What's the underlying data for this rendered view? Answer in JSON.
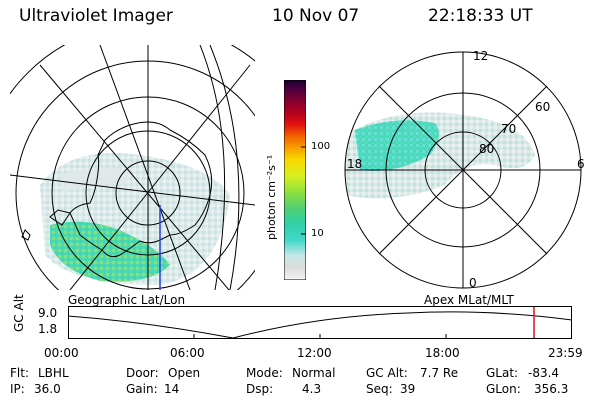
{
  "header": {
    "instrument": "Ultraviolet Imager",
    "date": "10 Nov 07",
    "time": "22:18:33 UT"
  },
  "left_map": {
    "caption": "Geographic Lat/Lon"
  },
  "right_map": {
    "caption": "Apex MLat/MLT",
    "lat_labels": [
      "80",
      "70",
      "60"
    ],
    "mlt_labels": {
      "top": "12",
      "left": "18",
      "right": "6",
      "bottom": "0"
    }
  },
  "colorbar": {
    "unit": "photon cm⁻²s⁻¹",
    "ticks": [
      "100",
      "10"
    ],
    "scale": "log",
    "colors": [
      "#f4f4f4",
      "#dcdcdc",
      "#c8e8e8",
      "#40d8c8",
      "#30d0a8",
      "#50d070",
      "#90e040",
      "#d8f020",
      "#f8d800",
      "#f8a000",
      "#f06000",
      "#e01010",
      "#b00020",
      "#800030",
      "#500040",
      "#1a0030"
    ]
  },
  "altitude_plot": {
    "ylabel": "GC Alt",
    "y_ticks": [
      "9.0",
      "1.8"
    ],
    "x_ticks": [
      "00:00",
      "06:00",
      "12:00",
      "18:00",
      "23:59"
    ],
    "marker_color": "#e01010"
  },
  "status": {
    "row1": [
      {
        "key": "Flt:",
        "value": "LBHL"
      },
      {
        "key": "Door:",
        "value": "Open"
      },
      {
        "key": "Mode:",
        "value": "Normal"
      },
      {
        "key": "GC Alt:",
        "value": "7.7 Re"
      },
      {
        "key": "GLat:",
        "value": "-83.4"
      }
    ],
    "row2": [
      {
        "key": "IP:",
        "value": "36.0"
      },
      {
        "key": "Gain:",
        "value": "14"
      },
      {
        "key": "Dsp:",
        "value": "4.3"
      },
      {
        "key": "Seq:",
        "value": "39"
      },
      {
        "key": "GLon:",
        "value": "356.3"
      }
    ]
  }
}
